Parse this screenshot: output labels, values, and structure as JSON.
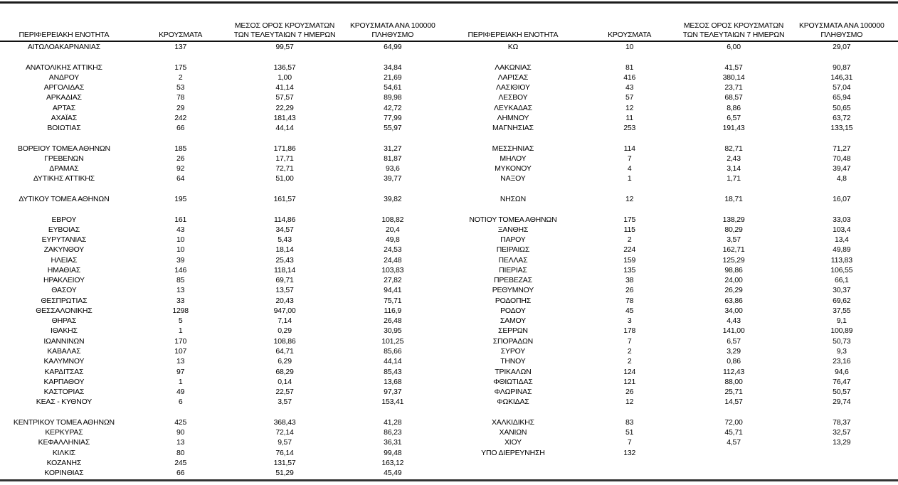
{
  "colors": {
    "background": "#ffffff",
    "text": "#000000",
    "top_rule": "#1c1c1c",
    "header_rule": "#111111",
    "bottom_rule": "#333333"
  },
  "table": {
    "headers": {
      "region": "ΠΕΡΙΦΕΡΕΙΑΚΗ ΕΝΟΤΗΤΑ",
      "cases": "ΚΡΟΥΣΜΑΤΑ",
      "avg7_line1": "ΜΕΣΟΣ ΟΡΟΣ ΚΡΟΥΣΜΑΤΩΝ",
      "avg7_line2": "ΤΩΝ ΤΕΛΕΥΤΑΙΩΝ 7 ΗΜΕΡΩΝ",
      "per100k_line1": "ΚΡΟΥΣΜΑΤΑ ΑΝΑ 100000",
      "per100k_line2": "ΠΛΗΘΥΣΜΟ"
    },
    "left_rows": [
      [
        "ΑΙΤΩΛΟΑΚΑΡΝΑΝΙΑΣ",
        "137",
        "99,57",
        "64,99"
      ],
      [
        "",
        "",
        "",
        ""
      ],
      [
        "ΑΝΑΤΟΛΙΚΗΣ ΑΤΤΙΚΗΣ",
        "175",
        "136,57",
        "34,84"
      ],
      [
        "ΑΝΔΡΟΥ",
        "2",
        "1,00",
        "21,69"
      ],
      [
        "ΑΡΓΟΛΙΔΑΣ",
        "53",
        "41,14",
        "54,61"
      ],
      [
        "ΑΡΚΑΔΙΑΣ",
        "78",
        "57,57",
        "89,98"
      ],
      [
        "ΑΡΤΑΣ",
        "29",
        "22,29",
        "42,72"
      ],
      [
        "ΑΧΑΪΑΣ",
        "242",
        "181,43",
        "77,99"
      ],
      [
        "ΒΟΙΩΤΙΑΣ",
        "66",
        "44,14",
        "55,97"
      ],
      [
        "",
        "",
        "",
        ""
      ],
      [
        "ΒΟΡΕΙΟΥ ΤΟΜΕΑ ΑΘΗΝΩΝ",
        "185",
        "171,86",
        "31,27"
      ],
      [
        "ΓΡΕΒΕΝΩΝ",
        "26",
        "17,71",
        "81,87"
      ],
      [
        "ΔΡΑΜΑΣ",
        "92",
        "72,71",
        "93,6"
      ],
      [
        "ΔΥΤΙΚΗΣ ΑΤΤΙΚΗΣ",
        "64",
        "51,00",
        "39,77"
      ],
      [
        "",
        "",
        "",
        ""
      ],
      [
        "ΔΥΤΙΚΟΥ ΤΟΜΕΑ ΑΘΗΝΩΝ",
        "195",
        "161,57",
        "39,82"
      ],
      [
        "",
        "",
        "",
        ""
      ],
      [
        "ΕΒΡΟΥ",
        "161",
        "114,86",
        "108,82"
      ],
      [
        "ΕΥΒΟΙΑΣ",
        "43",
        "34,57",
        "20,4"
      ],
      [
        "ΕΥΡΥΤΑΝΙΑΣ",
        "10",
        "5,43",
        "49,8"
      ],
      [
        "ΖΑΚΥΝΘΟΥ",
        "10",
        "18,14",
        "24,53"
      ],
      [
        "ΗΛΕΙΑΣ",
        "39",
        "25,43",
        "24,48"
      ],
      [
        "ΗΜΑΘΙΑΣ",
        "146",
        "118,14",
        "103,83"
      ],
      [
        "ΗΡΑΚΛΕΙΟΥ",
        "85",
        "69,71",
        "27,82"
      ],
      [
        "ΘΑΣΟΥ",
        "13",
        "13,57",
        "94,41"
      ],
      [
        "ΘΕΣΠΡΩΤΙΑΣ",
        "33",
        "20,43",
        "75,71"
      ],
      [
        "ΘΕΣΣΑΛΟΝΙΚΗΣ",
        "1298",
        "947,00",
        "116,9"
      ],
      [
        "ΘΗΡΑΣ",
        "5",
        "7,14",
        "26,48"
      ],
      [
        "ΙΘΑΚΗΣ",
        "1",
        "0,29",
        "30,95"
      ],
      [
        "ΙΩΑΝΝΙΝΩΝ",
        "170",
        "108,86",
        "101,25"
      ],
      [
        "ΚΑΒΑΛΑΣ",
        "107",
        "64,71",
        "85,66"
      ],
      [
        "ΚΑΛΥΜΝΟΥ",
        "13",
        "6,29",
        "44,14"
      ],
      [
        "ΚΑΡΔΙΤΣΑΣ",
        "97",
        "68,29",
        "85,43"
      ],
      [
        "ΚΑΡΠΑΘΟΥ",
        "1",
        "0,14",
        "13,68"
      ],
      [
        "ΚΑΣΤΟΡΙΑΣ",
        "49",
        "22,57",
        "97,37"
      ],
      [
        "ΚΕΑΣ - ΚΥΘΝΟΥ",
        "6",
        "3,57",
        "153,41"
      ],
      [
        "",
        "",
        "",
        ""
      ],
      [
        "ΚΕΝΤΡΙΚΟΥ ΤΟΜΕΑ ΑΘΗΝΩΝ",
        "425",
        "368,43",
        "41,28"
      ],
      [
        "ΚΕΡΚΥΡΑΣ",
        "90",
        "72,14",
        "86,23"
      ],
      [
        "ΚΕΦΑΛΛΗΝΙΑΣ",
        "13",
        "9,57",
        "36,31"
      ],
      [
        "ΚΙΛΚΙΣ",
        "80",
        "76,14",
        "99,48"
      ],
      [
        "ΚΟΖΑΝΗΣ",
        "245",
        "131,57",
        "163,12"
      ],
      [
        "ΚΟΡΙΝΘΙΑΣ",
        "66",
        "51,29",
        "45,49"
      ]
    ],
    "right_rows": [
      [
        "ΚΩ",
        "10",
        "6,00",
        "29,07"
      ],
      [
        "",
        "",
        "",
        ""
      ],
      [
        "ΛΑΚΩΝΙΑΣ",
        "81",
        "41,57",
        "90,87"
      ],
      [
        "ΛΑΡΙΣΑΣ",
        "416",
        "380,14",
        "146,31"
      ],
      [
        "ΛΑΣΙΘΙΟΥ",
        "43",
        "23,71",
        "57,04"
      ],
      [
        "ΛΕΣΒΟΥ",
        "57",
        "68,57",
        "65,94"
      ],
      [
        "ΛΕΥΚΑΔΑΣ",
        "12",
        "8,86",
        "50,65"
      ],
      [
        "ΛΗΜΝΟΥ",
        "11",
        "6,57",
        "63,72"
      ],
      [
        "ΜΑΓΝΗΣΙΑΣ",
        "253",
        "191,43",
        "133,15"
      ],
      [
        "",
        "",
        "",
        ""
      ],
      [
        "ΜΕΣΣΗΝΙΑΣ",
        "114",
        "82,71",
        "71,27"
      ],
      [
        "ΜΗΛΟΥ",
        "7",
        "2,43",
        "70,48"
      ],
      [
        "ΜΥΚΟΝΟΥ",
        "4",
        "3,14",
        "39,47"
      ],
      [
        "ΝΑΞΟΥ",
        "1",
        "1,71",
        "4,8"
      ],
      [
        "",
        "",
        "",
        ""
      ],
      [
        "ΝΗΣΩΝ",
        "12",
        "18,71",
        "16,07"
      ],
      [
        "",
        "",
        "",
        ""
      ],
      [
        "ΝΟΤΙΟΥ ΤΟΜΕΑ ΑΘΗΝΩΝ",
        "175",
        "138,29",
        "33,03"
      ],
      [
        "ΞΑΝΘΗΣ",
        "115",
        "80,29",
        "103,4"
      ],
      [
        "ΠΑΡΟΥ",
        "2",
        "3,57",
        "13,4"
      ],
      [
        "ΠΕΙΡΑΙΩΣ",
        "224",
        "162,71",
        "49,89"
      ],
      [
        "ΠΕΛΛΑΣ",
        "159",
        "125,29",
        "113,83"
      ],
      [
        "ΠΙΕΡΙΑΣ",
        "135",
        "98,86",
        "106,55"
      ],
      [
        "ΠΡΕΒΕΖΑΣ",
        "38",
        "24,00",
        "66,1"
      ],
      [
        "ΡΕΘΥΜΝΟΥ",
        "26",
        "26,29",
        "30,37"
      ],
      [
        "ΡΟΔΟΠΗΣ",
        "78",
        "63,86",
        "69,62"
      ],
      [
        "ΡΟΔΟΥ",
        "45",
        "34,00",
        "37,55"
      ],
      [
        "ΣΑΜΟΥ",
        "3",
        "4,43",
        "9,1"
      ],
      [
        "ΣΕΡΡΩΝ",
        "178",
        "141,00",
        "100,89"
      ],
      [
        "ΣΠΟΡΑΔΩΝ",
        "7",
        "6,57",
        "50,73"
      ],
      [
        "ΣΥΡΟΥ",
        "2",
        "3,29",
        "9,3"
      ],
      [
        "ΤΗΝΟΥ",
        "2",
        "0,86",
        "23,16"
      ],
      [
        "ΤΡΙΚΑΛΩΝ",
        "124",
        "112,43",
        "94,6"
      ],
      [
        "ΦΘΙΩΤΙΔΑΣ",
        "121",
        "88,00",
        "76,47"
      ],
      [
        "ΦΛΩΡΙΝΑΣ",
        "26",
        "25,71",
        "50,57"
      ],
      [
        "ΦΩΚΙΔΑΣ",
        "12",
        "14,57",
        "29,74"
      ],
      [
        "",
        "",
        "",
        ""
      ],
      [
        "ΧΑΛΚΙΔΙΚΗΣ",
        "83",
        "72,00",
        "78,37"
      ],
      [
        "ΧΑΝΙΩΝ",
        "51",
        "45,71",
        "32,57"
      ],
      [
        "ΧΙΟΥ",
        "7",
        "4,57",
        "13,29"
      ],
      [
        "ΥΠΟ ΔΙΕΡΕΥΝΗΣΗ",
        "132",
        "",
        ""
      ]
    ]
  }
}
